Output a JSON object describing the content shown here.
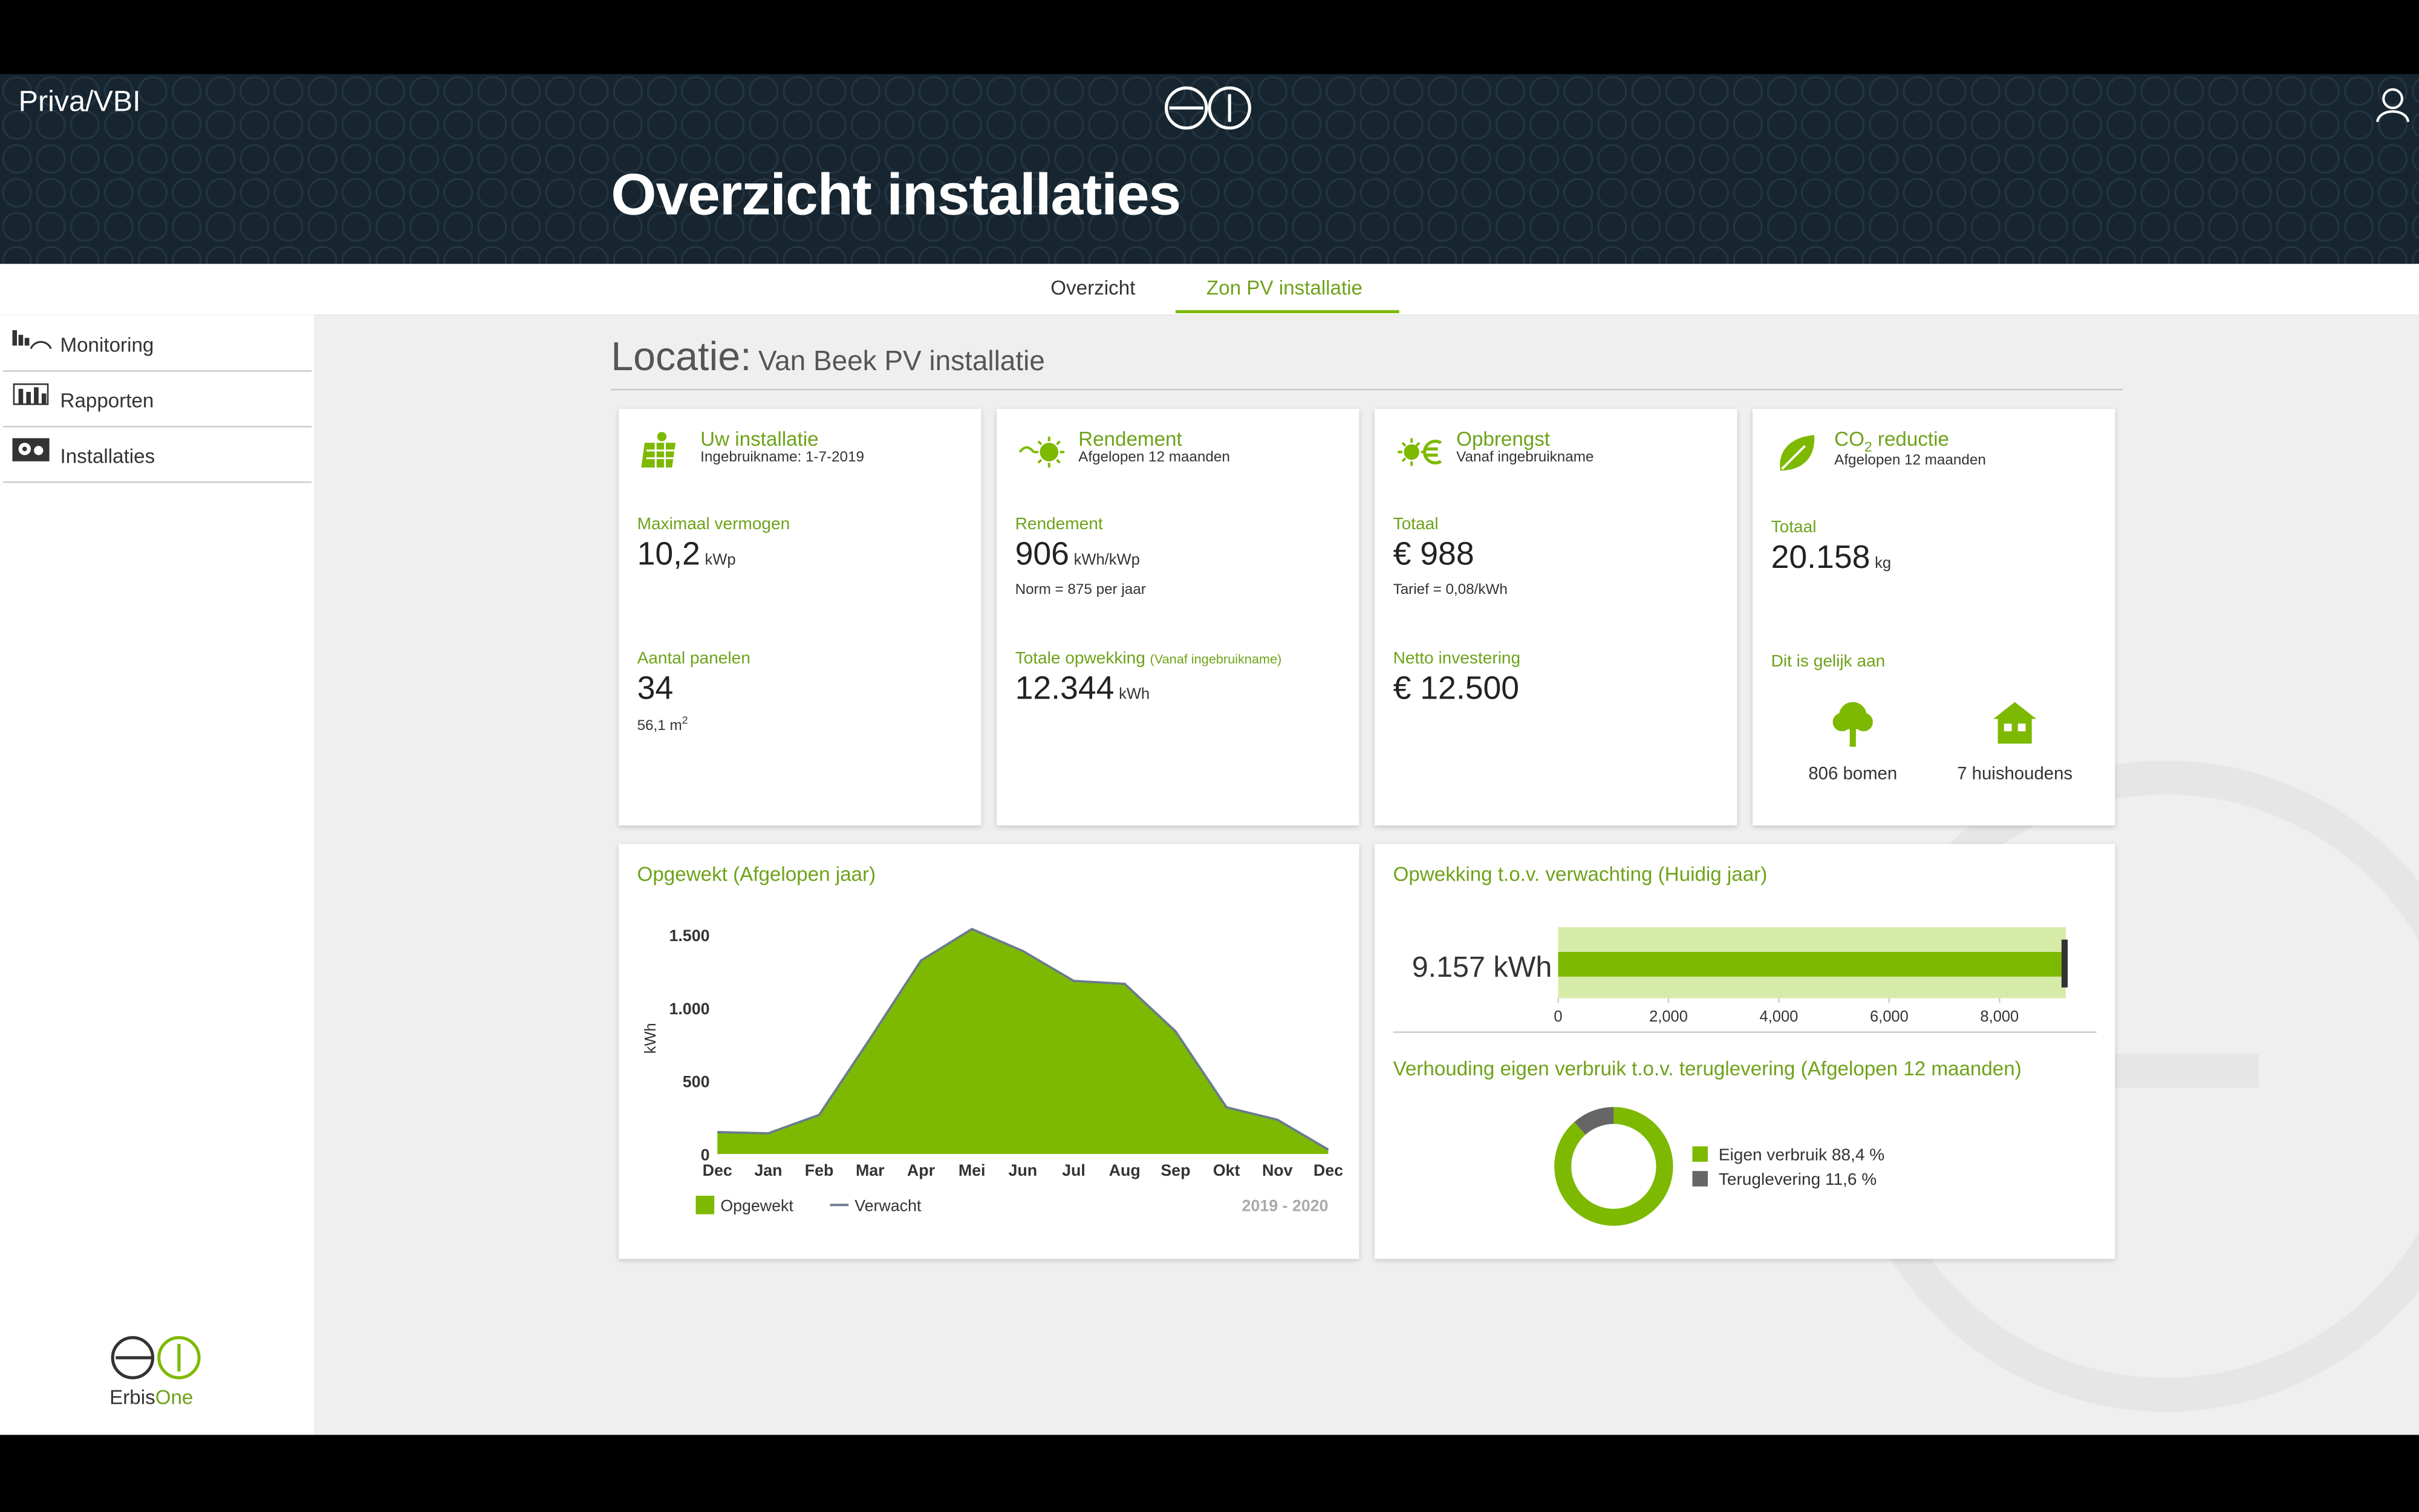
{
  "header": {
    "brand": "Priva/VBI",
    "title": "Overzicht installaties"
  },
  "tabs": [
    "Overzicht",
    "Zon PV installatie"
  ],
  "sidebar": {
    "items": [
      "Monitoring",
      "Rapporten",
      "Installaties"
    ],
    "logo": [
      "Erbis",
      "One"
    ]
  },
  "location": {
    "label": "Locatie:",
    "name": "Van Beek PV installatie"
  },
  "cards": [
    {
      "title": "Uw installatie",
      "subtitle": "Ingebruikname: 1-7-2019",
      "items": [
        {
          "label": "Maximaal vermogen",
          "value": "10,2",
          "unit": "kWp"
        },
        {
          "label": "Aantal panelen",
          "value": "34",
          "note": "56,1 m",
          "note_sup": "2"
        }
      ]
    },
    {
      "title": "Rendement",
      "subtitle": "Afgelopen 12 maanden",
      "items": [
        {
          "label": "Rendement",
          "value": "906",
          "unit": "kWh/kWp",
          "note": "Norm = 875 per jaar"
        },
        {
          "label": "Totale opwekking",
          "label_extra": "(Vanaf ingebruikname)",
          "value": "12.344",
          "unit": "kWh"
        }
      ]
    },
    {
      "title": "Opbrengst",
      "subtitle": "Vanaf ingebruikname",
      "items": [
        {
          "label": "Totaal",
          "value": "€ 988",
          "note": "Tarief = 0,08/kWh"
        },
        {
          "label": "Netto investering",
          "value": "€ 12.500"
        }
      ]
    },
    {
      "title": "CO",
      "title_sub": "2",
      "title_rest": " reductie",
      "subtitle": "Afgelopen 12 maanden",
      "items": [
        {
          "label": "Totaal",
          "value": "20.158",
          "unit": "kg"
        }
      ],
      "equivalent_label": "Dit is gelijk aan",
      "equivalents": [
        "806 bomen",
        "7 huishoudens"
      ]
    }
  ],
  "chart_data": [
    {
      "type": "area",
      "title": "Opgewekt (Afgelopen jaar)",
      "y_label": "kWh",
      "categories": [
        "Dec",
        "Jan",
        "Feb",
        "Mar",
        "Apr",
        "Mei",
        "Jun",
        "Jul",
        "Aug",
        "Sep",
        "Okt",
        "Nov",
        "Dec"
      ],
      "series": [
        {
          "name": "Opgewekt",
          "color": "#7db900",
          "values": [
            148,
            140,
            264,
            780,
            1320,
            1535,
            1384,
            1183,
            1160,
            834,
            317,
            232,
            30
          ]
        },
        {
          "name": "Verwacht",
          "color": "#6b7b8c",
          "values": [
            150,
            142,
            268,
            790,
            1325,
            1540,
            1390,
            1185,
            1165,
            840,
            320,
            235,
            30
          ]
        }
      ],
      "ylim": [
        0,
        1600
      ],
      "yticks": [
        0,
        500,
        {
          "value": 1000,
          "label": "1.000"
        },
        {
          "value": 1500,
          "label": "1.500"
        }
      ],
      "period": "2019 - 2020"
    },
    {
      "type": "bullet",
      "title": "Opwekking t.o.v. verwachting (Huidig jaar)",
      "value": 9157,
      "value_label": "9.157 kWh",
      "target": 9180,
      "color": "#7db900",
      "band_color": "#d6eba8",
      "xlim": [
        0,
        9200
      ],
      "xticks": [
        0,
        {
          "value": 2000,
          "label": "2,000"
        },
        {
          "value": 4000,
          "label": "4,000"
        },
        {
          "value": 6000,
          "label": "6,000"
        },
        {
          "value": 8000,
          "label": "8,000"
        }
      ]
    },
    {
      "type": "donut",
      "title": "Verhouding eigen verbruik t.o.v. teruglevering (Afgelopen 12 maanden)",
      "values": [
        88.4,
        11.6
      ],
      "value_labels": [
        "Eigen verbruik 88,4 %",
        "Teruglevering 11,6 %"
      ],
      "colors": [
        "#7db900",
        "#666666"
      ]
    }
  ]
}
